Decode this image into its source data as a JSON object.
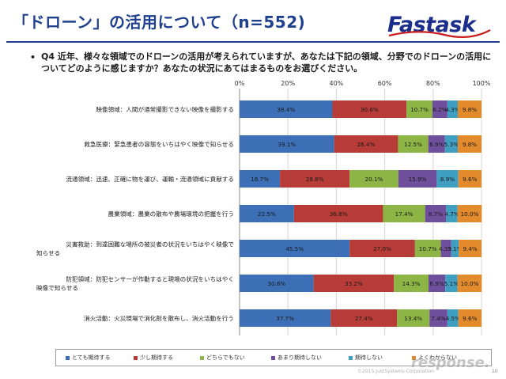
{
  "header": {
    "title": "「ドローン」の活用について（n=552)",
    "logo_text": "Fastask",
    "accent_color": "#1f3f8f"
  },
  "question": {
    "bullet": "•",
    "text": "Q4 近年、様々な領域でのドローンの活用が考えられていますが、あなたは下記の領域、分野でのドローンの活用についてどのように感じますか？あなたの状況にあてはまるものをお選びください。"
  },
  "chart_data": {
    "type": "bar",
    "orientation": "horizontal",
    "stacked": true,
    "percent_stacked": true,
    "xlim": [
      0,
      100
    ],
    "x_ticks": [
      "0%",
      "20%",
      "40%",
      "60%",
      "80%",
      "100%"
    ],
    "x_tick_values": [
      0,
      20,
      40,
      60,
      80,
      100
    ],
    "grid": true,
    "legend_position": "bottom",
    "categories": [
      "映像領域：人間が通常撮影できない映像を撮影する",
      "救急医療：緊急患者の容態をいちはやく映像で知らせる",
      "流通領域：迅速、正確に物を運び、運輸・流通領域に貢献する",
      "農業領域：農業の散布や農場環境の把握を行う",
      "災害救助：到達困難な場所の被災者の状況をいちはやく映像で知らせる",
      "防犯領域：防犯センサーが作動すると現場の状況をいちはやく映像で知らせる",
      "消火活動：火災現場で消化剤を散布し、消火活動を行う"
    ],
    "category_lines": [
      [
        "映像領域：人間が通常撮影できない映像を撮影する"
      ],
      [
        "救急医療：緊急患者の容態をいちはやく映像で知らせる"
      ],
      [
        "流通領域：迅速、正確に物を運び、運輸・流通領域に貢献する"
      ],
      [
        "農業領域：農業の散布や農場環境の把握を行う"
      ],
      [
        "災害救助：到達困難な場所の被災者の状況をいちはやく映像で",
        "知らせる"
      ],
      [
        "防犯領域：防犯センサーが作動すると現場の状況をいちはやく",
        "映像で知らせる"
      ],
      [
        "消火活動：火災現場で消化剤を散布し、消火活動を行う"
      ]
    ],
    "series": [
      {
        "name": "とても期待する",
        "color": "#3c6fb6",
        "values": [
          38.4,
          39.1,
          16.7,
          22.5,
          45.5,
          30.6,
          37.7
        ]
      },
      {
        "name": "少し期待する",
        "color": "#b73b36",
        "values": [
          30.6,
          26.4,
          28.8,
          36.8,
          27.0,
          33.2,
          27.4
        ]
      },
      {
        "name": "どちらでもない",
        "color": "#8db545",
        "values": [
          10.7,
          12.5,
          20.1,
          17.4,
          10.7,
          14.3,
          13.4
        ]
      },
      {
        "name": "あまり期待しない",
        "color": "#6f4f9c",
        "values": [
          6.2,
          6.9,
          15.9,
          8.7,
          4.3,
          6.9,
          7.4
        ]
      },
      {
        "name": "期待しない",
        "color": "#3e9fc0",
        "values": [
          4.3,
          5.3,
          8.9,
          4.7,
          3.1,
          5.1,
          4.5
        ]
      },
      {
        "name": "よくわからない",
        "color": "#e38a2d",
        "values": [
          9.8,
          9.8,
          9.6,
          10.0,
          9.4,
          10.0,
          9.6
        ]
      }
    ],
    "data_labels": [
      [
        "38.4%",
        "30.6%",
        "10.7%",
        "6.2%",
        "4.3%",
        "9.8%"
      ],
      [
        "39.1%",
        "26.4%",
        "12.5%",
        "6.9%",
        "5.3%",
        "9.8%"
      ],
      [
        "16.7%",
        "28.8%",
        "20.1%",
        "15.9%",
        "8.9%",
        "9.6%"
      ],
      [
        "22.5%",
        "36.8%",
        "17.4%",
        "8.7%",
        "4.7%",
        "10.0%"
      ],
      [
        "45.5%",
        "27.0%",
        "10.7%",
        "4.3%",
        "3.1%",
        "9.4%"
      ],
      [
        "30.6%",
        "33.2%",
        "14.3%",
        "6.9%",
        "5.1%",
        "10.0%"
      ],
      [
        "37.7%",
        "27.4%",
        "13.4%",
        "7.4%",
        "4.5%",
        "9.6%"
      ]
    ]
  },
  "footer": {
    "copyright": "©2015 JustSystems Corporation",
    "page_number": "10",
    "watermark": "response."
  }
}
